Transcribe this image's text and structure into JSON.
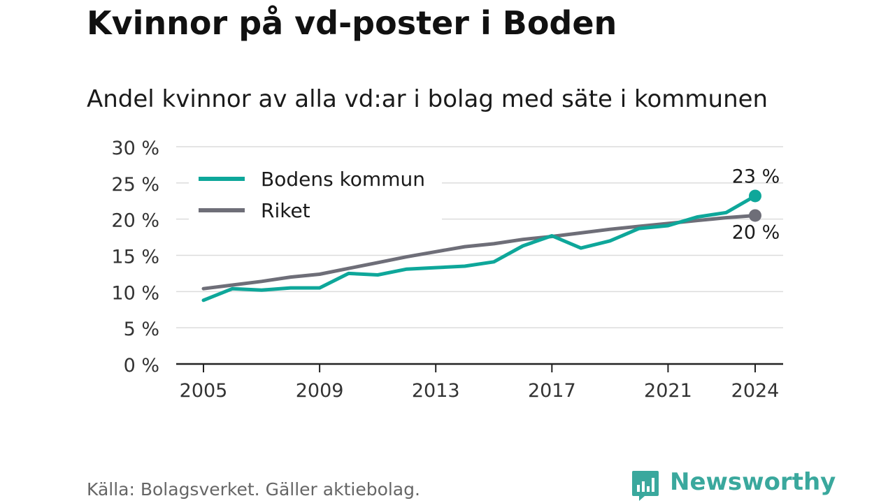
{
  "title": "Kvinnor på vd-poster i Boden",
  "subtitle": "Andel kvinnor av alla vd:ar i bolag med säte i kommunen",
  "source": "Källa: Bolagsverket. Gäller aktiebolag.",
  "brand": {
    "name": "Newsworthy",
    "color": "#3aa89d",
    "icon": "bar-chart-speech-bubble-icon"
  },
  "chart_data": {
    "type": "line",
    "x": [
      2005,
      2006,
      2007,
      2008,
      2009,
      2010,
      2011,
      2012,
      2013,
      2014,
      2015,
      2016,
      2017,
      2018,
      2019,
      2020,
      2021,
      2022,
      2023,
      2024
    ],
    "series": [
      {
        "name": "Bodens kommun",
        "color": "#0ea79a",
        "values": [
          8.8,
          10.4,
          10.2,
          10.5,
          10.5,
          12.5,
          12.3,
          13.1,
          13.3,
          13.5,
          14.1,
          16.3,
          17.7,
          16.0,
          17.0,
          18.7,
          19.1,
          20.3,
          20.9,
          23.2
        ],
        "end_label": "23 %"
      },
      {
        "name": "Riket",
        "color": "#6e6e78",
        "values": [
          10.4,
          10.9,
          11.4,
          12.0,
          12.4,
          13.2,
          14.0,
          14.8,
          15.5,
          16.2,
          16.6,
          17.2,
          17.6,
          18.1,
          18.6,
          19.0,
          19.4,
          19.8,
          20.2,
          20.5
        ],
        "end_label": "20 %"
      }
    ],
    "ylim": [
      0,
      30
    ],
    "yticks": [
      0,
      5,
      10,
      15,
      20,
      25,
      30
    ],
    "ytick_labels": [
      "0 %",
      "5 %",
      "10 %",
      "15 %",
      "20 %",
      "25 %",
      "30 %"
    ],
    "xticks": [
      2005,
      2009,
      2013,
      2017,
      2021,
      2024
    ],
    "xtick_labels": [
      "2005",
      "2009",
      "2013",
      "2017",
      "2021",
      "2024"
    ],
    "grid": true,
    "legend": "top-left"
  }
}
